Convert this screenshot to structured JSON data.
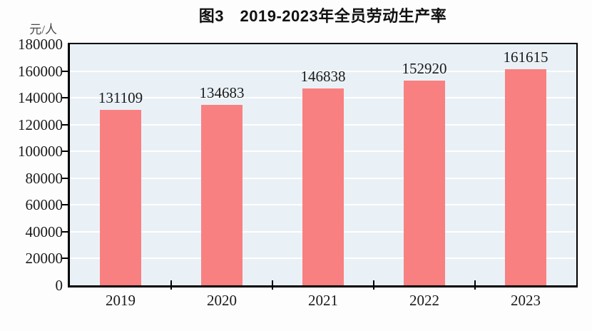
{
  "chart_data": {
    "type": "bar",
    "title": "图3　2019-2023年全员劳动生产率",
    "ylabel": "元/人",
    "xlabel": "",
    "categories": [
      "2019",
      "2020",
      "2021",
      "2022",
      "2023"
    ],
    "values": [
      131109,
      134683,
      146838,
      152920,
      161615
    ],
    "data_labels": [
      "131109",
      "134683",
      "146838",
      "152920",
      "161615"
    ],
    "ylim": [
      0,
      180000
    ],
    "yticks": [
      0,
      20000,
      40000,
      60000,
      80000,
      100000,
      120000,
      140000,
      160000,
      180000
    ],
    "grid": true,
    "legend_position": "none",
    "colors": {
      "bar": "#F98080",
      "plot_background": "#E9F1F7",
      "gridline": "#FFFFFF",
      "axis": "#000000",
      "text": "#1A1A1A",
      "title_text": "#111111",
      "unit_label_text": "#4A4A4A",
      "page_background": "#FDFDFE"
    }
  }
}
